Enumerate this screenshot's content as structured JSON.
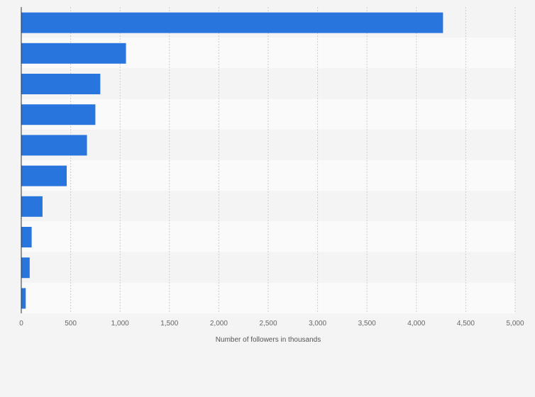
{
  "chart_data": {
    "type": "bar",
    "orientation": "horizontal",
    "categories": [
      "",
      "",
      "",
      "",
      "",
      "",
      "",
      "",
      "",
      ""
    ],
    "values": [
      4270,
      1060,
      800,
      750,
      665,
      460,
      215,
      105,
      85,
      45
    ],
    "xlabel": "Number of followers in thousands",
    "ylabel": "",
    "xlim": [
      0,
      5000
    ],
    "x_ticks": [
      0,
      500,
      1000,
      1500,
      2000,
      2500,
      3000,
      3500,
      4000,
      4500,
      5000
    ],
    "x_tick_labels": [
      "0",
      "500",
      "1,000",
      "1,500",
      "2,000",
      "2,500",
      "3,000",
      "3,500",
      "4,000",
      "4,500",
      "5,000"
    ],
    "grid": "vertical",
    "legend": "none",
    "bar_color": "#2876dd",
    "row_band_colors": [
      "#f4f4f4",
      "#fafafa"
    ]
  }
}
